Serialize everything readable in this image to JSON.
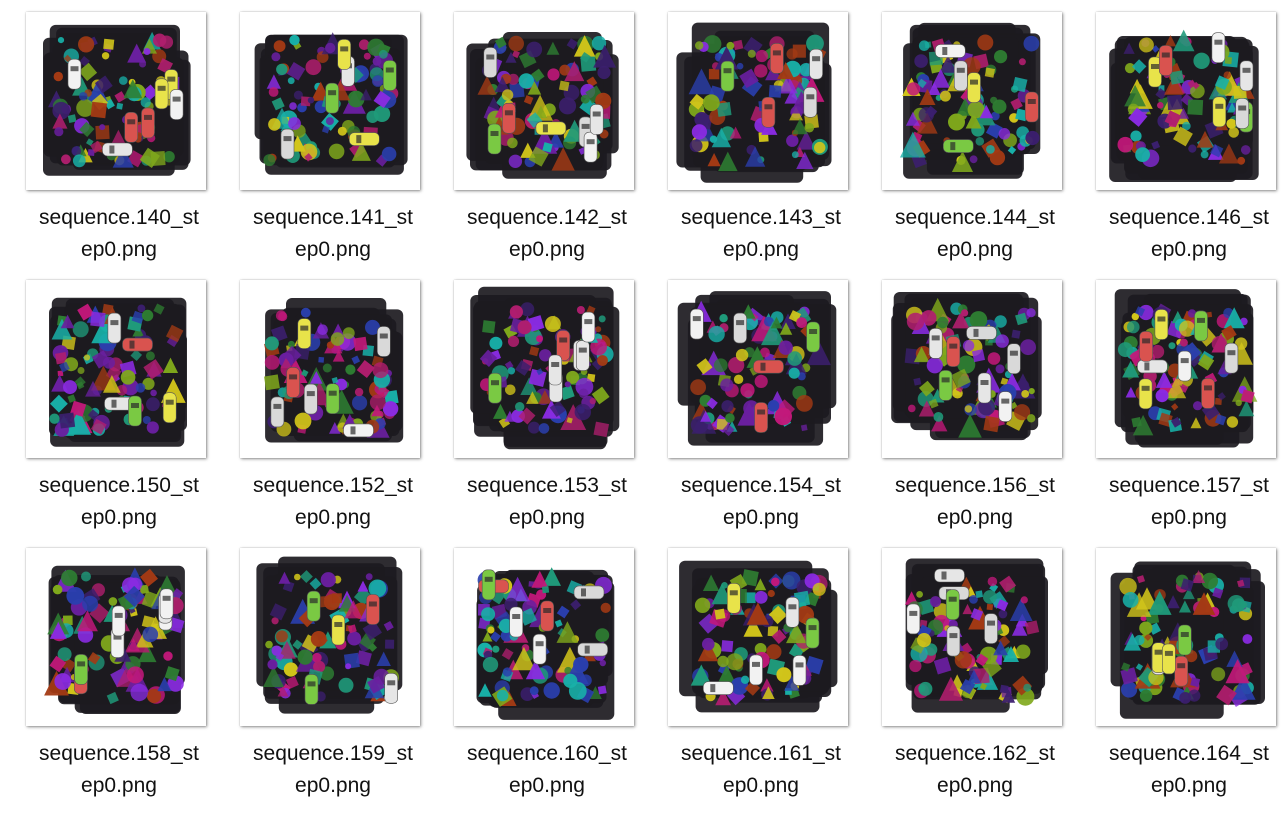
{
  "files": [
    {
      "name": "sequence.140_step0.png",
      "line1": "sequence.140_st",
      "line2": "ep0.png"
    },
    {
      "name": "sequence.141_step0.png",
      "line1": "sequence.141_st",
      "line2": "ep0.png"
    },
    {
      "name": "sequence.142_step0.png",
      "line1": "sequence.142_st",
      "line2": "ep0.png"
    },
    {
      "name": "sequence.143_step0.png",
      "line1": "sequence.143_st",
      "line2": "ep0.png"
    },
    {
      "name": "sequence.144_step0.png",
      "line1": "sequence.144_st",
      "line2": "ep0.png"
    },
    {
      "name": "sequence.146_step0.png",
      "line1": "sequence.146_st",
      "line2": "ep0.png"
    },
    {
      "name": "sequence.150_step0.png",
      "line1": "sequence.150_st",
      "line2": "ep0.png"
    },
    {
      "name": "sequence.152_step0.png",
      "line1": "sequence.152_st",
      "line2": "ep0.png"
    },
    {
      "name": "sequence.153_step0.png",
      "line1": "sequence.153_st",
      "line2": "ep0.png"
    },
    {
      "name": "sequence.154_step0.png",
      "line1": "sequence.154_st",
      "line2": "ep0.png"
    },
    {
      "name": "sequence.156_step0.png",
      "line1": "sequence.156_st",
      "line2": "ep0.png"
    },
    {
      "name": "sequence.157_step0.png",
      "line1": "sequence.157_st",
      "line2": "ep0.png"
    },
    {
      "name": "sequence.158_step0.png",
      "line1": "sequence.158_st",
      "line2": "ep0.png"
    },
    {
      "name": "sequence.159_step0.png",
      "line1": "sequence.159_st",
      "line2": "ep0.png"
    },
    {
      "name": "sequence.160_step0.png",
      "line1": "sequence.160_st",
      "line2": "ep0.png"
    },
    {
      "name": "sequence.161_step0.png",
      "line1": "sequence.161_st",
      "line2": "ep0.png"
    },
    {
      "name": "sequence.162_step0.png",
      "line1": "sequence.162_st",
      "line2": "ep0.png"
    },
    {
      "name": "sequence.164_step0.png",
      "line1": "sequence.164_st",
      "line2": "ep0.png"
    }
  ],
  "palette": {
    "background": "#ffffff",
    "text": "#111111",
    "clutter_base": "#1c1a1f",
    "object_colors": [
      "#6a1fa0",
      "#1f9a7a",
      "#c2187a",
      "#2a3fae",
      "#7fa81c",
      "#a33a14",
      "#18b0a8",
      "#8a2be2",
      "#2e7d32",
      "#b01e6e",
      "#d2c51a",
      "#3b1f6e"
    ],
    "car_colors": [
      "#e6e6e6",
      "#d9d9d9",
      "#e8e34a",
      "#d9534f",
      "#7ac943",
      "#f2f2f2"
    ]
  }
}
